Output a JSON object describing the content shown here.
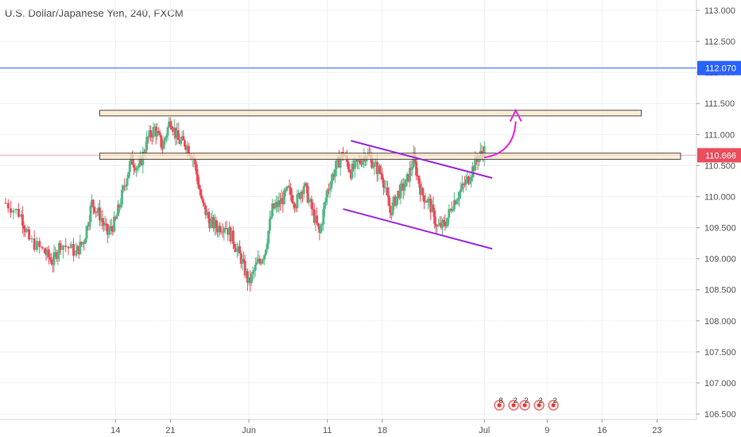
{
  "header": {
    "title": "U.S. Dollar/Japanese Yen, 240, FXCM"
  },
  "colors": {
    "up": "#53b987",
    "down": "#eb4d5c",
    "grid": "#eef0f3",
    "axis_text": "#555555",
    "blue_line": "#2962ff",
    "pink_line": "#f3a6b1",
    "zone_fill": "#fbe6c5",
    "zone_stroke": "#4a4a4a",
    "channel": "#9c27e0",
    "arrow": "#e91ee6",
    "price_tag_blue": "#2962ff",
    "price_tag_red": "#eb4d5c"
  },
  "chart_data": {
    "type": "candlestick",
    "title": "U.S. Dollar/Japanese Yen, 240, FXCM",
    "ylim": [
      106.4,
      113.05
    ],
    "y_ticks": [
      "106.500",
      "107.000",
      "107.500",
      "108.000",
      "108.500",
      "109.000",
      "109.500",
      "110.000",
      "110.500",
      "111.000",
      "111.500",
      "112.000",
      "112.500",
      "113.000"
    ],
    "x_ticks": [
      "14",
      "21",
      "Jun",
      "11",
      "18",
      "Jul",
      "9",
      "16",
      "23"
    ],
    "x_tick_days": [
      -17,
      -10,
      0,
      10,
      17,
      30,
      38,
      45,
      52
    ],
    "xlim_days": [
      -31,
      58
    ],
    "price_tags": [
      {
        "label": "112.070",
        "value": 112.07,
        "color": "blue"
      },
      {
        "label": "110.666",
        "value": 110.666,
        "color": "red"
      }
    ],
    "horizontal_lines": [
      {
        "value": 112.07,
        "color": "blue"
      },
      {
        "value": 110.666,
        "color": "pink"
      }
    ],
    "zones": [
      {
        "x1": -19,
        "x2": 50,
        "y1": 111.3,
        "y2": 111.39
      },
      {
        "x1": -19,
        "x2": 55,
        "y1": 110.6,
        "y2": 110.7
      }
    ],
    "channel_lines": [
      {
        "x1": 13,
        "y1": 110.9,
        "x2": 31,
        "y2": 110.3
      },
      {
        "x1": 12,
        "y1": 109.8,
        "x2": 31,
        "y2": 109.16
      }
    ],
    "arrow": {
      "from": [
        30,
        110.63
      ],
      "to": [
        34,
        111.39
      ]
    },
    "events": [
      "8",
      "2",
      "2",
      "2",
      "2"
    ],
    "anchors": [
      [
        -31,
        109.9
      ],
      [
        -29,
        109.7
      ],
      [
        -28,
        109.3
      ],
      [
        -26,
        109.1
      ],
      [
        -25,
        108.95
      ],
      [
        -24,
        109.25
      ],
      [
        -22,
        109.1
      ],
      [
        -21,
        109.3
      ],
      [
        -20,
        109.9
      ],
      [
        -19,
        109.7
      ],
      [
        -18,
        109.4
      ],
      [
        -17,
        109.6
      ],
      [
        -16,
        110.1
      ],
      [
        -15,
        110.6
      ],
      [
        -14,
        110.45
      ],
      [
        -13,
        110.9
      ],
      [
        -12,
        111.1
      ],
      [
        -11,
        110.8
      ],
      [
        -10,
        111.25
      ],
      [
        -9,
        110.9
      ],
      [
        -8,
        110.85
      ],
      [
        -7,
        110.6
      ],
      [
        -6,
        109.9
      ],
      [
        -5,
        109.6
      ],
      [
        -4,
        109.5
      ],
      [
        -3,
        109.55
      ],
      [
        -2,
        109.3
      ],
      [
        -1,
        109.0
      ],
      [
        0,
        108.6
      ],
      [
        1,
        108.9
      ],
      [
        2,
        109.1
      ],
      [
        3,
        109.8
      ],
      [
        4,
        109.9
      ],
      [
        5,
        110.1
      ],
      [
        6,
        109.9
      ],
      [
        7,
        110.2
      ],
      [
        8,
        109.8
      ],
      [
        9,
        109.4
      ],
      [
        10,
        110.1
      ],
      [
        11,
        110.45
      ],
      [
        12,
        110.7
      ],
      [
        13,
        110.4
      ],
      [
        14,
        110.55
      ],
      [
        15,
        110.7
      ],
      [
        16,
        110.5
      ],
      [
        17,
        110.35
      ],
      [
        18,
        109.75
      ],
      [
        19,
        110.05
      ],
      [
        20,
        110.2
      ],
      [
        21,
        110.6
      ],
      [
        22,
        110.05
      ],
      [
        23,
        109.9
      ],
      [
        24,
        109.5
      ],
      [
        25,
        109.55
      ],
      [
        26,
        109.9
      ],
      [
        27,
        110.1
      ],
      [
        28,
        110.3
      ],
      [
        29,
        110.6
      ],
      [
        30,
        110.75
      ]
    ]
  }
}
